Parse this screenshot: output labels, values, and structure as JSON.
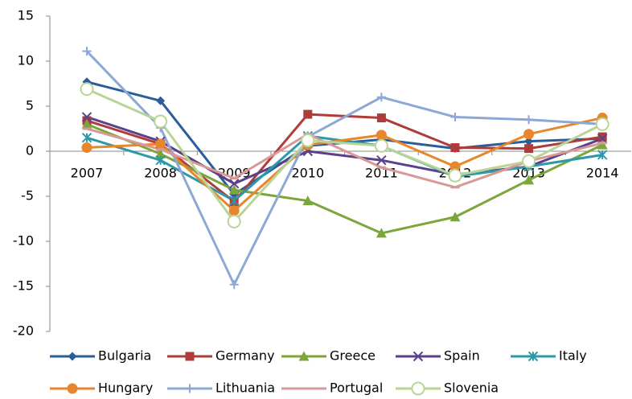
{
  "chart_data": {
    "type": "line",
    "categories": [
      "2007",
      "2008",
      "2009",
      "2010",
      "2011",
      "2012",
      "2013",
      "2014"
    ],
    "series": [
      {
        "name": "Bulgaria",
        "color": "#2a5d9a",
        "marker": "diamond",
        "values": [
          7.7,
          5.6,
          -4.8,
          0.6,
          1.3,
          0.3,
          1.1,
          1.4
        ]
      },
      {
        "name": "Germany",
        "color": "#b03c3a",
        "marker": "square",
        "values": [
          3.4,
          0.8,
          -5.6,
          4.1,
          3.7,
          0.4,
          0.3,
          1.6
        ]
      },
      {
        "name": "Greece",
        "color": "#7ba63c",
        "marker": "triangle",
        "values": [
          3.0,
          -0.3,
          -4.3,
          -5.5,
          -9.1,
          -7.3,
          -3.2,
          0.7
        ]
      },
      {
        "name": "Spain",
        "color": "#5b4189",
        "marker": "x",
        "values": [
          3.8,
          1.1,
          -3.6,
          0.0,
          -1.0,
          -2.6,
          -1.7,
          1.4
        ]
      },
      {
        "name": "Italy",
        "color": "#2d98a8",
        "marker": "star",
        "values": [
          1.5,
          -1.0,
          -5.5,
          1.7,
          0.6,
          -2.8,
          -1.7,
          -0.4
        ]
      },
      {
        "name": "Hungary",
        "color": "#e8862b",
        "marker": "circle",
        "values": [
          0.4,
          0.8,
          -6.6,
          0.7,
          1.8,
          -1.7,
          1.9,
          3.7
        ]
      },
      {
        "name": "Lithuania",
        "color": "#8da8d6",
        "marker": "plus",
        "values": [
          11.1,
          2.6,
          -14.8,
          1.6,
          6.0,
          3.8,
          3.5,
          3.0
        ]
      },
      {
        "name": "Portugal",
        "color": "#d99896",
        "marker": "dash",
        "values": [
          2.5,
          0.2,
          -3.0,
          1.9,
          -1.8,
          -4.0,
          -1.1,
          0.9
        ]
      },
      {
        "name": "Slovenia",
        "color": "#b9d496",
        "marker": "open-circle",
        "values": [
          6.9,
          3.3,
          -7.8,
          1.2,
          0.6,
          -2.7,
          -1.1,
          3.0
        ]
      }
    ],
    "ylim": [
      -20,
      15
    ],
    "yticks": [
      -20,
      -15,
      -10,
      -5,
      0,
      5,
      10,
      15
    ],
    "grid": false,
    "legend": "bottom"
  }
}
